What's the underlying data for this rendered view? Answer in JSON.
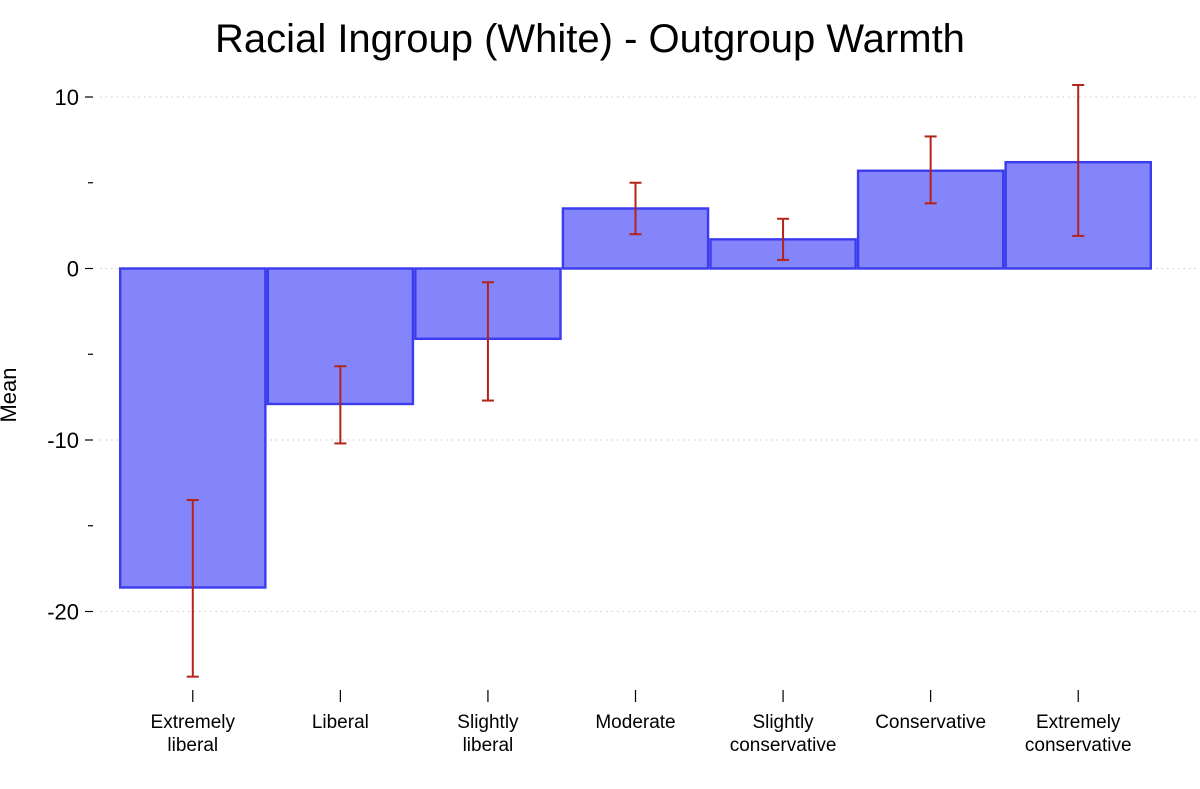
{
  "chart_data": {
    "type": "bar",
    "title": "Racial Ingroup (White) - Outgroup Warmth",
    "xlabel": "",
    "ylabel": "Mean",
    "categories": [
      [
        "Extremely",
        "liberal"
      ],
      [
        "Liberal"
      ],
      [
        "Slightly",
        "liberal"
      ],
      [
        "Moderate"
      ],
      [
        "Slightly",
        "conservative"
      ],
      [
        "Conservative"
      ],
      [
        "Extremely",
        "conservative"
      ]
    ],
    "values": [
      -18.6,
      -7.9,
      -4.1,
      3.5,
      1.7,
      5.7,
      6.2
    ],
    "error_low": [
      -23.8,
      -10.2,
      -7.7,
      2.0,
      0.5,
      3.8,
      1.9
    ],
    "error_high": [
      -13.5,
      -5.7,
      -0.8,
      5.0,
      2.9,
      7.7,
      10.7
    ],
    "yticks_major": [
      10,
      0,
      -10,
      -20
    ],
    "ytick_labels": [
      "10",
      "0",
      "-10",
      "-20"
    ],
    "yticks_minor": [
      5,
      -5,
      -15
    ],
    "ylim": [
      -24.5,
      11.5
    ],
    "grid": true,
    "colors": {
      "bar_fill": "#8585fb",
      "bar_edge": "#3b3bef",
      "error_bar": "#b3231a"
    }
  }
}
